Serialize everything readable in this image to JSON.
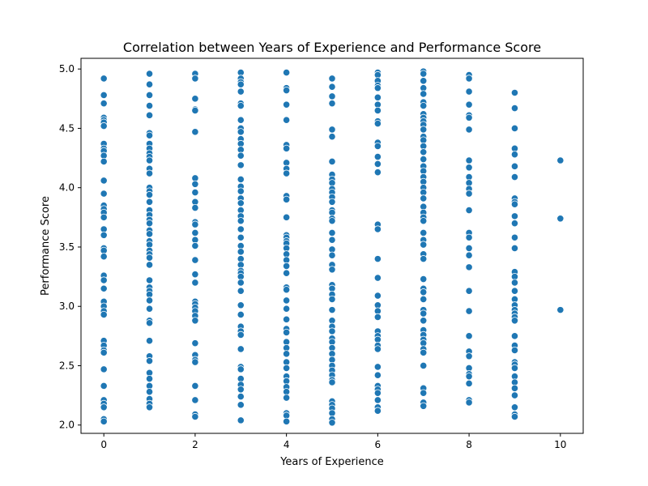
{
  "chart_data": {
    "type": "scatter",
    "title": "Correlation between Years of Experience and Performance Score",
    "xlabel": "Years of Experience",
    "ylabel": "Performance Score",
    "xlim": [
      -0.5,
      10.5
    ],
    "ylim": [
      1.93,
      5.09
    ],
    "xticks": [
      0,
      2,
      4,
      6,
      8,
      10
    ],
    "yticks": [
      2.0,
      2.5,
      3.0,
      3.5,
      4.0,
      4.5,
      5.0
    ],
    "grid": false,
    "point_color": "#1f77b4",
    "points_by_x": [
      {
        "x": 0,
        "y": [
          4.92,
          4.78,
          4.71,
          4.59,
          4.57,
          4.55,
          4.52,
          4.37,
          4.33,
          4.31,
          4.27,
          4.22,
          4.06,
          3.95,
          3.85,
          3.82,
          3.79,
          3.75,
          3.65,
          3.6,
          3.49,
          3.47,
          3.42,
          3.26,
          3.22,
          3.15,
          3.04,
          3.0,
          2.96,
          2.93,
          2.71,
          2.67,
          2.63,
          2.61,
          2.47,
          2.33,
          2.21,
          2.18,
          2.15,
          2.05,
          2.03
        ]
      },
      {
        "x": 1,
        "y": [
          4.96,
          4.87,
          4.78,
          4.69,
          4.61,
          4.46,
          4.44,
          4.37,
          4.33,
          4.29,
          4.26,
          4.23,
          4.16,
          4.12,
          4.0,
          3.97,
          3.94,
          3.88,
          3.81,
          3.77,
          3.73,
          3.7,
          3.64,
          3.61,
          3.55,
          3.52,
          3.47,
          3.44,
          3.41,
          3.35,
          3.22,
          3.16,
          3.13,
          3.1,
          3.05,
          2.98,
          2.88,
          2.86,
          2.71,
          2.58,
          2.54,
          2.44,
          2.39,
          2.33,
          2.28,
          2.22,
          2.18,
          2.15
        ]
      },
      {
        "x": 2,
        "y": [
          4.96,
          4.92,
          4.75,
          4.66,
          4.65,
          4.47,
          4.08,
          4.03,
          3.96,
          3.88,
          3.83,
          3.71,
          3.69,
          3.62,
          3.56,
          3.51,
          3.39,
          3.27,
          3.2,
          3.04,
          3.02,
          2.99,
          2.96,
          2.92,
          2.88,
          2.69,
          2.59,
          2.55,
          2.53,
          2.33,
          2.21,
          2.09,
          2.07
        ]
      },
      {
        "x": 3,
        "y": [
          4.97,
          4.92,
          4.89,
          4.87,
          4.81,
          4.71,
          4.69,
          4.57,
          4.5,
          4.47,
          4.41,
          4.37,
          4.32,
          4.27,
          4.19,
          4.07,
          4.01,
          3.97,
          3.91,
          3.87,
          3.81,
          3.76,
          3.72,
          3.65,
          3.58,
          3.51,
          3.46,
          3.4,
          3.35,
          3.3,
          3.28,
          3.25,
          3.2,
          3.13,
          3.01,
          2.93,
          2.83,
          2.79,
          2.76,
          2.64,
          2.49,
          2.47,
          2.39,
          2.34,
          2.3,
          2.24,
          2.17,
          2.04
        ]
      },
      {
        "x": 4,
        "y": [
          4.97,
          4.84,
          4.82,
          4.7,
          4.57,
          4.36,
          4.33,
          4.21,
          4.16,
          4.12,
          3.93,
          3.9,
          3.75,
          3.6,
          3.58,
          3.55,
          3.53,
          3.49,
          3.44,
          3.39,
          3.34,
          3.28,
          3.16,
          3.14,
          3.05,
          2.98,
          2.89,
          2.81,
          2.78,
          2.7,
          2.65,
          2.6,
          2.53,
          2.48,
          2.41,
          2.37,
          2.32,
          2.28,
          2.23,
          2.1,
          2.08,
          2.03
        ]
      },
      {
        "x": 5,
        "y": [
          4.92,
          4.85,
          4.77,
          4.71,
          4.49,
          4.43,
          4.22,
          4.11,
          4.07,
          4.04,
          3.99,
          3.96,
          3.92,
          3.88,
          3.81,
          3.79,
          3.74,
          3.72,
          3.62,
          3.56,
          3.48,
          3.43,
          3.35,
          3.31,
          3.18,
          3.15,
          3.1,
          3.06,
          2.97,
          2.88,
          2.83,
          2.79,
          2.73,
          2.7,
          2.65,
          2.6,
          2.55,
          2.5,
          2.46,
          2.42,
          2.38,
          2.36,
          2.2,
          2.17,
          2.14,
          2.1,
          2.05,
          2.02
        ]
      },
      {
        "x": 6,
        "y": [
          4.97,
          4.95,
          4.9,
          4.86,
          4.84,
          4.76,
          4.7,
          4.65,
          4.56,
          4.54,
          4.38,
          4.35,
          4.26,
          4.2,
          4.13,
          3.69,
          3.65,
          3.4,
          3.24,
          3.09,
          3.01,
          2.96,
          2.91,
          2.79,
          2.75,
          2.72,
          2.67,
          2.64,
          2.49,
          2.42,
          2.33,
          2.3,
          2.27,
          2.21,
          2.15,
          2.12
        ]
      },
      {
        "x": 7,
        "y": [
          4.98,
          4.96,
          4.9,
          4.84,
          4.79,
          4.72,
          4.69,
          4.62,
          4.59,
          4.56,
          4.53,
          4.49,
          4.43,
          4.4,
          4.35,
          4.3,
          4.24,
          4.18,
          4.14,
          4.09,
          4.05,
          4.0,
          3.96,
          3.91,
          3.84,
          3.79,
          3.75,
          3.72,
          3.62,
          3.56,
          3.52,
          3.44,
          3.4,
          3.23,
          3.15,
          3.12,
          3.06,
          2.97,
          2.94,
          2.88,
          2.8,
          2.76,
          2.72,
          2.69,
          2.64,
          2.61,
          2.5,
          2.31,
          2.27,
          2.19,
          2.16
        ]
      },
      {
        "x": 8,
        "y": [
          4.95,
          4.92,
          4.81,
          4.7,
          4.61,
          4.59,
          4.49,
          4.23,
          4.17,
          4.09,
          4.04,
          3.99,
          3.95,
          3.81,
          3.62,
          3.58,
          3.49,
          3.43,
          3.33,
          3.13,
          2.96,
          2.75,
          2.62,
          2.58,
          2.48,
          2.43,
          2.41,
          2.35,
          2.21,
          2.19
        ]
      },
      {
        "x": 9,
        "y": [
          4.8,
          4.67,
          4.5,
          4.33,
          4.28,
          4.18,
          4.09,
          3.91,
          3.88,
          3.86,
          3.76,
          3.7,
          3.58,
          3.49,
          3.29,
          3.25,
          3.2,
          3.13,
          3.06,
          3.01,
          2.97,
          2.94,
          2.91,
          2.88,
          2.75,
          2.67,
          2.63,
          2.53,
          2.51,
          2.48,
          2.41,
          2.36,
          2.31,
          2.25,
          2.15,
          2.09,
          2.07
        ]
      },
      {
        "x": 10,
        "y": [
          4.23,
          3.74,
          2.97
        ]
      }
    ]
  }
}
